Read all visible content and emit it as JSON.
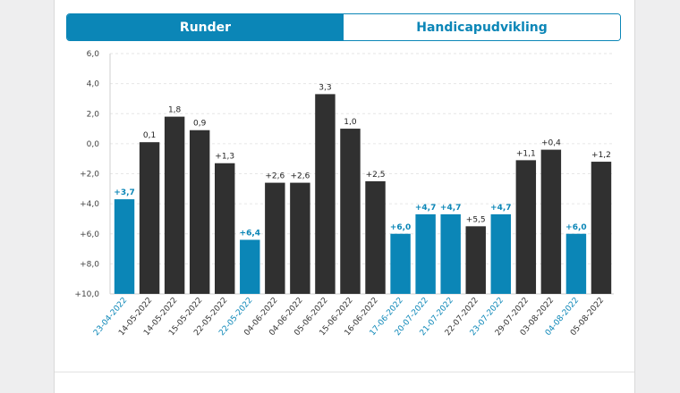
{
  "tabs": [
    {
      "label": "Runder",
      "active": true
    },
    {
      "label": "Handicapudvikling",
      "active": false
    }
  ],
  "colors": {
    "accent": "#0b86b7",
    "bar_dark": "#303030",
    "bar_blue": "#0b86b7",
    "date_dark": "#333333",
    "date_blue": "#0b86b7"
  },
  "chart_data": {
    "type": "bar",
    "yaxis_inverted": true,
    "ylim": [
      6,
      -10
    ],
    "ytick_labels": [
      "6,0",
      "4,0",
      "2,0",
      "0,0",
      "+2,0",
      "+4,0",
      "+6,0",
      "+8,0",
      "+10,0"
    ],
    "ytick_values": [
      6,
      4,
      2,
      0,
      -2,
      -4,
      -6,
      -8,
      -10
    ],
    "grid": true,
    "categories": [
      "23-04-2022",
      "14-05-2022",
      "14-05-2022",
      "15-05-2022",
      "22-05-2022",
      "22-05-2022",
      "04-06-2022",
      "04-06-2022",
      "05-06-2022",
      "15-06-2022",
      "16-06-2022",
      "17-06-2022",
      "20-07-2022",
      "21-07-2022",
      "22-07-2022",
      "23-07-2022",
      "29-07-2022",
      "03-08-2022",
      "04-08-2022",
      "05-08-2022"
    ],
    "values": [
      -3.7,
      0.1,
      1.8,
      0.9,
      -1.3,
      -6.4,
      -2.6,
      -2.6,
      3.3,
      1.0,
      -2.5,
      -6.0,
      -4.7,
      -4.7,
      -5.5,
      -4.7,
      -1.1,
      -0.4,
      -6.0,
      -1.2
    ],
    "labels": [
      "+3,7",
      "0,1",
      "1,8",
      "0,9",
      "+1,3",
      "+6,4",
      "+2,6",
      "+2,6",
      "3,3",
      "1,0",
      "+2,5",
      "+6,0",
      "+4,7",
      "+4,7",
      "+5,5",
      "+4,7",
      "+1,1",
      "+0,4",
      "+6,0",
      "+1,2"
    ],
    "highlighted": [
      true,
      false,
      false,
      false,
      false,
      true,
      false,
      false,
      false,
      false,
      false,
      true,
      true,
      true,
      false,
      true,
      false,
      false,
      true,
      false
    ]
  }
}
